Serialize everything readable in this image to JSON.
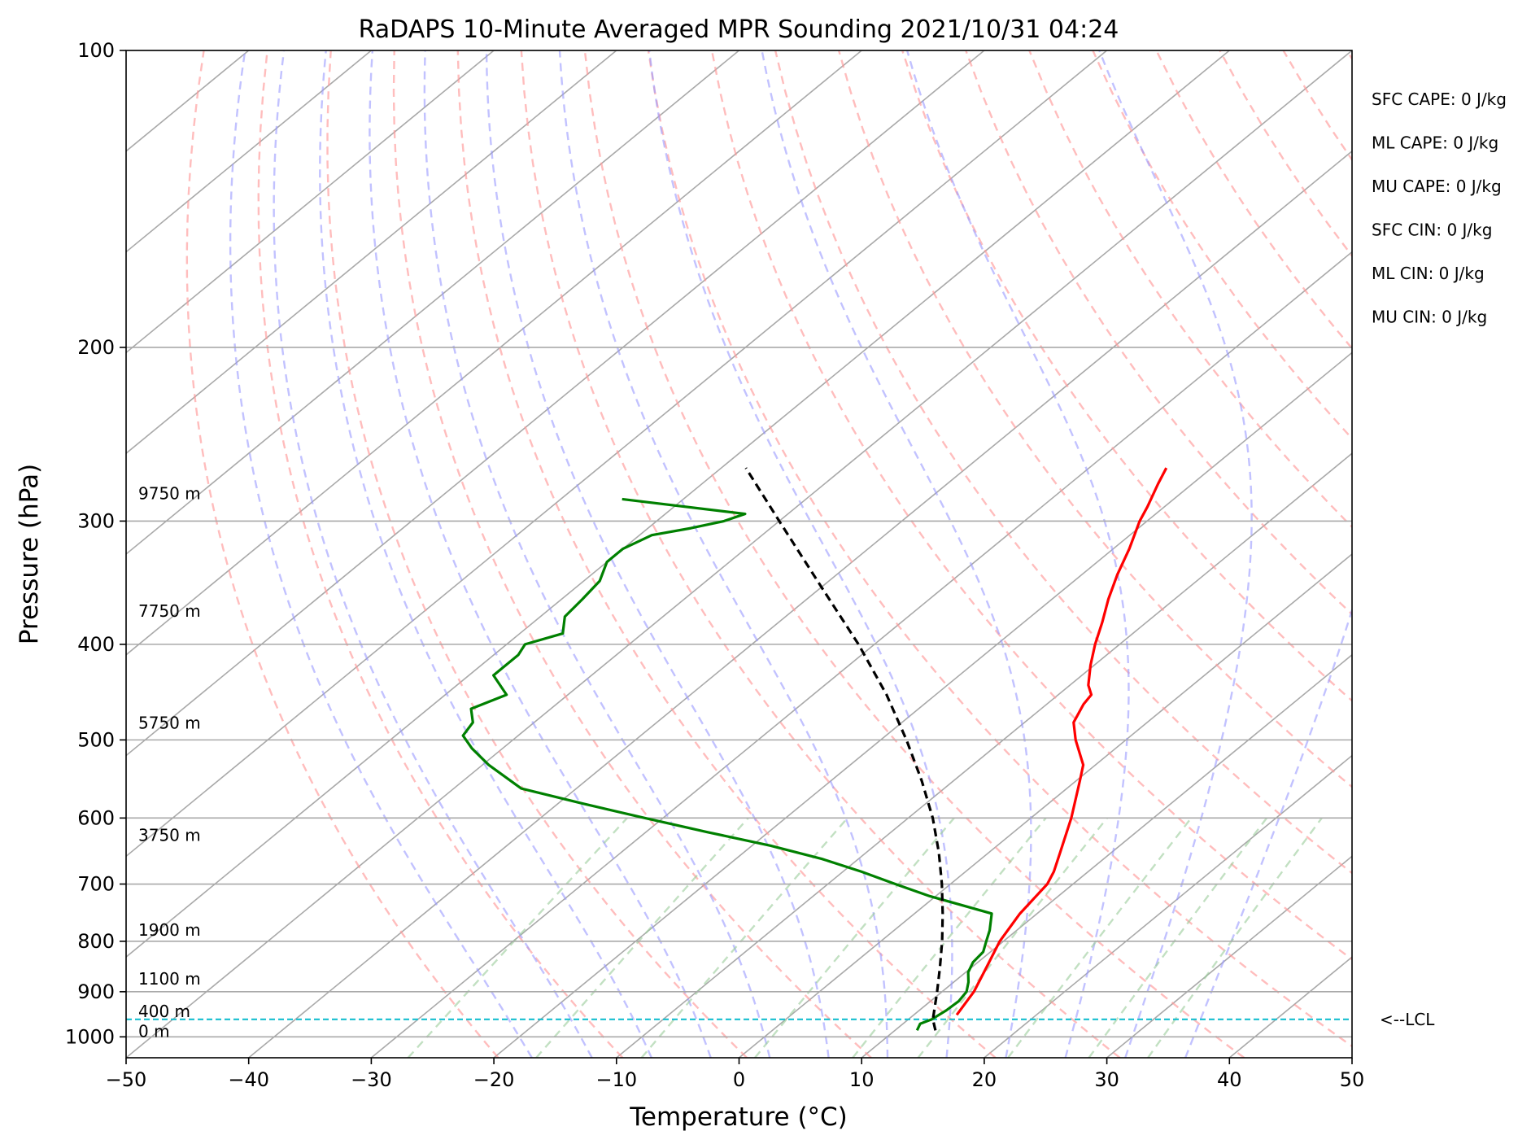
{
  "chart_data": {
    "type": "line",
    "title": "RaDAPS 10-Minute Averaged MPR Sounding 2021/10/31 04:24",
    "xlabel": "Temperature (°C)",
    "ylabel": "Pressure (hPa)",
    "xlim": [
      -50,
      50
    ],
    "ylim": [
      1050,
      100
    ],
    "y_scale": "log",
    "x_ticks": [
      -50,
      -40,
      -30,
      -20,
      -10,
      0,
      10,
      20,
      30,
      40,
      50
    ],
    "x_tick_labels": [
      "−50",
      "−40",
      "−30",
      "−20",
      "−10",
      "0",
      "10",
      "20",
      "30",
      "40",
      "50"
    ],
    "y_ticks": [
      100,
      200,
      300,
      400,
      500,
      600,
      700,
      800,
      900,
      1000
    ],
    "y_tick_labels": [
      "100",
      "200",
      "300",
      "400",
      "500",
      "600",
      "700",
      "800",
      "900",
      "1000"
    ],
    "grid": true,
    "skew_degrees": 45,
    "background_lines": {
      "isotherms_c": [
        -150,
        -140,
        -130,
        -120,
        -110,
        -100,
        -90,
        -80,
        -70,
        -60,
        -50,
        -40,
        -30,
        -20,
        -10,
        0,
        10,
        20,
        30,
        40,
        50
      ],
      "dry_adiabats_k": [
        250,
        260,
        270,
        280,
        290,
        300,
        310,
        320,
        330,
        340,
        350,
        360,
        370,
        380,
        390,
        400,
        410,
        420,
        430,
        440
      ],
      "moist_adiabats_start_c": [
        -20,
        -15,
        -10,
        -5,
        0,
        5,
        10,
        15,
        20,
        25,
        30,
        35
      ],
      "mixing_ratios_gkg": [
        0.4,
        1,
        2,
        4,
        7,
        10,
        16,
        24,
        32
      ],
      "mixing_ratio_top_hpa": 600
    },
    "series": [
      {
        "role": "temperature",
        "color": "#ff0000",
        "points": [
          [
            950,
            13.5
          ],
          [
            900,
            12.6
          ],
          [
            850,
            11.2
          ],
          [
            800,
            9.7
          ],
          [
            750,
            8.6
          ],
          [
            700,
            7.9
          ],
          [
            680,
            7.2
          ],
          [
            650,
            5.8
          ],
          [
            600,
            3.3
          ],
          [
            550,
            0.3
          ],
          [
            530,
            -1.0
          ],
          [
            500,
            -4.1
          ],
          [
            480,
            -6.0
          ],
          [
            460,
            -7.0
          ],
          [
            450,
            -7.3
          ],
          [
            440,
            -8.5
          ],
          [
            420,
            -10.3
          ],
          [
            400,
            -12.0
          ],
          [
            380,
            -13.6
          ],
          [
            360,
            -15.4
          ],
          [
            340,
            -17.1
          ],
          [
            320,
            -18.7
          ],
          [
            300,
            -20.6
          ],
          [
            290,
            -21.4
          ],
          [
            275,
            -22.8
          ],
          [
            265,
            -23.7
          ]
        ]
      },
      {
        "role": "dewpoint",
        "color": "#008000",
        "points": [
          [
            985,
            11.8
          ],
          [
            970,
            11.4
          ],
          [
            960,
            11.9
          ],
          [
            940,
            12.2
          ],
          [
            920,
            12.3
          ],
          [
            900,
            12.0
          ],
          [
            880,
            11.2
          ],
          [
            860,
            10.2
          ],
          [
            840,
            9.6
          ],
          [
            820,
            9.4
          ],
          [
            800,
            8.6
          ],
          [
            780,
            7.8
          ],
          [
            750,
            6.3
          ],
          [
            720,
            -0.5
          ],
          [
            700,
            -4.5
          ],
          [
            680,
            -8.5
          ],
          [
            660,
            -13.0
          ],
          [
            640,
            -18.5
          ],
          [
            620,
            -25.0
          ],
          [
            600,
            -31.5
          ],
          [
            580,
            -38.0
          ],
          [
            560,
            -44.5
          ],
          [
            530,
            -49.5
          ],
          [
            510,
            -52.5
          ],
          [
            495,
            -54.5
          ],
          [
            480,
            -55.0
          ],
          [
            465,
            -56.5
          ],
          [
            450,
            -55.0
          ],
          [
            430,
            -58.0
          ],
          [
            410,
            -58.0
          ],
          [
            400,
            -58.5
          ],
          [
            390,
            -56.5
          ],
          [
            375,
            -58.0
          ],
          [
            360,
            -58.3
          ],
          [
            345,
            -58.7
          ],
          [
            330,
            -60.0
          ],
          [
            320,
            -60.0
          ],
          [
            310,
            -59.0
          ],
          [
            305,
            -56.5
          ],
          [
            300,
            -54.5
          ],
          [
            295,
            -53.5
          ],
          [
            285,
            -65.0
          ]
        ]
      },
      {
        "role": "parcel",
        "color": "#000000",
        "dashed": true,
        "points": [
          [
            985,
            13.3
          ],
          [
            960,
            12.0
          ],
          [
            900,
            9.6
          ],
          [
            850,
            7.4
          ],
          [
            800,
            5.0
          ],
          [
            750,
            2.3
          ],
          [
            700,
            -0.7
          ],
          [
            650,
            -4.1
          ],
          [
            600,
            -8.0
          ],
          [
            550,
            -12.6
          ],
          [
            500,
            -17.9
          ],
          [
            450,
            -24.0
          ],
          [
            400,
            -31.3
          ],
          [
            350,
            -40.0
          ],
          [
            300,
            -50.0
          ],
          [
            265,
            -58.0
          ]
        ]
      }
    ],
    "lcl_pressure_hpa": 960,
    "lcl_label": "<--LCL",
    "height_labels": [
      {
        "p": 285,
        "text": "9750 m"
      },
      {
        "p": 375,
        "text": "7750 m"
      },
      {
        "p": 487,
        "text": "5750 m"
      },
      {
        "p": 633,
        "text": "3750 m"
      },
      {
        "p": 790,
        "text": "1900 m"
      },
      {
        "p": 885,
        "text": "1100 m"
      },
      {
        "p": 955,
        "text": "400 m"
      },
      {
        "p": 1000,
        "text": "0 m"
      }
    ],
    "stats": [
      "SFC CAPE: 0 J/kg",
      "ML CAPE: 0 J/kg",
      "MU CAPE: 0 J/kg",
      "SFC CIN: 0 J/kg",
      "ML CIN: 0 J/kg",
      "MU CIN: 0 J/kg"
    ],
    "colors": {
      "isotherm": "#a9a9a9",
      "dry_adiabat": "#ff9999",
      "moist_adiabat": "#9999ff",
      "mixing_ratio": "#99cc99",
      "lcl_line": "#17becf",
      "grid": "#a9a9a9"
    }
  }
}
